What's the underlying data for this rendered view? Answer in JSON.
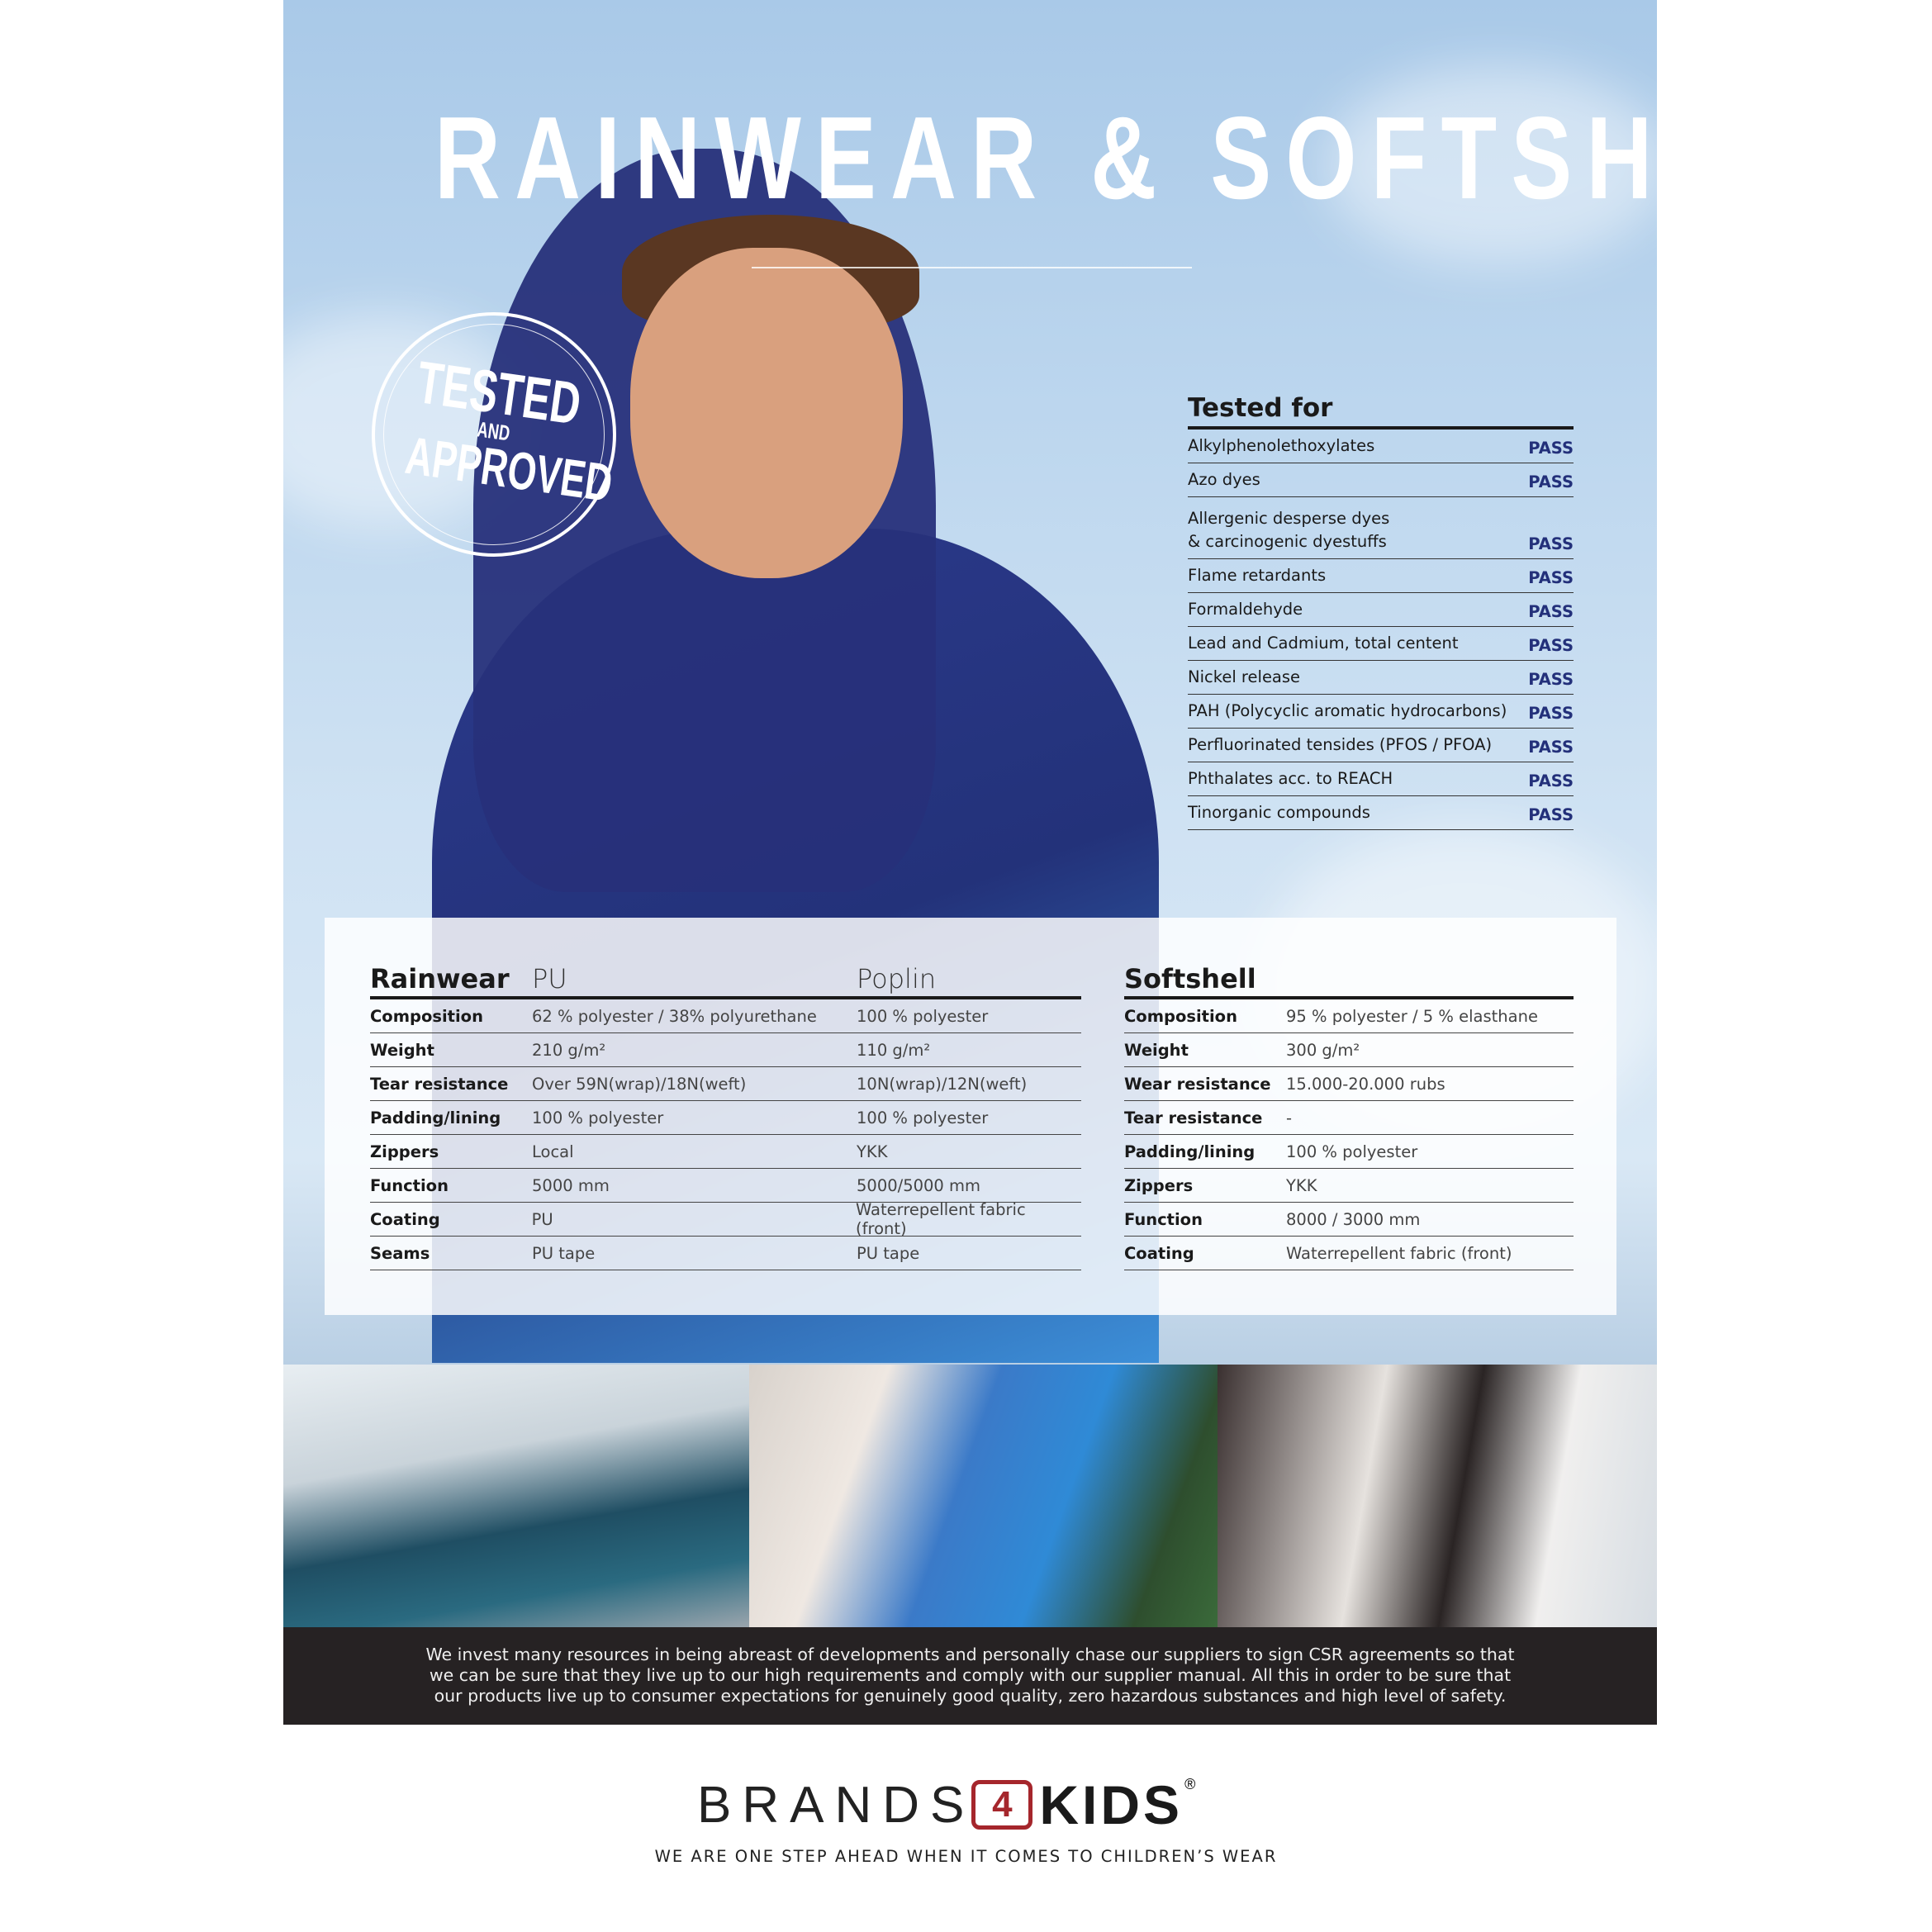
{
  "title": "RAINWEAR & SOFTSHELL",
  "stamp": {
    "line1": "TESTED",
    "line2": "AND",
    "line3": "APPROVED"
  },
  "tested_for": {
    "heading": "Tested for",
    "items": [
      {
        "label": "Alkylphenolethoxylates",
        "result": "PASS"
      },
      {
        "label": "Azo dyes",
        "result": "PASS"
      },
      {
        "label": "Allergenic desperse dyes\n& carcinogenic dyestuffs",
        "result": "PASS"
      },
      {
        "label": "Flame retardants",
        "result": "PASS"
      },
      {
        "label": "Formaldehyde",
        "result": "PASS"
      },
      {
        "label": "Lead and Cadmium, total centent",
        "result": "PASS"
      },
      {
        "label": "Nickel release",
        "result": "PASS"
      },
      {
        "label": "PAH (Polycyclic aromatic hydrocarbons)",
        "result": "PASS"
      },
      {
        "label": "Perfluorinated tensides (PFOS / PFOA)",
        "result": "PASS"
      },
      {
        "label": "Phthalates acc. to REACH",
        "result": "PASS"
      },
      {
        "label": "Tinorganic compounds",
        "result": "PASS"
      }
    ],
    "pass_color": "#23307a"
  },
  "rainwear": {
    "heading": "Rainwear",
    "columns": [
      "PU",
      "Poplin"
    ],
    "rows": [
      {
        "label": "Composition",
        "values": [
          "62 % polyester / 38% polyurethane",
          "100 % polyester"
        ]
      },
      {
        "label": "Weight",
        "values": [
          "210 g/m²",
          "110 g/m²"
        ]
      },
      {
        "label": "Tear resistance",
        "values": [
          "Over 59N(wrap)/18N(weft)",
          "10N(wrap)/12N(weft)"
        ]
      },
      {
        "label": "Padding/lining",
        "values": [
          "100 % polyester",
          "100 % polyester"
        ]
      },
      {
        "label": "Zippers",
        "values": [
          "Local",
          "YKK"
        ]
      },
      {
        "label": "Function",
        "values": [
          "5000 mm",
          "5000/5000 mm"
        ]
      },
      {
        "label": "Coating",
        "values": [
          "PU",
          "Waterrepellent fabric (front)"
        ]
      },
      {
        "label": "Seams",
        "values": [
          "PU tape",
          "PU tape"
        ]
      }
    ]
  },
  "softshell": {
    "heading": "Softshell",
    "rows": [
      {
        "label": "Composition",
        "value": "95 % polyester / 5 % elasthane"
      },
      {
        "label": "Weight",
        "value": "300 g/m²"
      },
      {
        "label": "Wear resistance",
        "value": "15.000-20.000 rubs"
      },
      {
        "label": "Tear resistance",
        "value": "-"
      },
      {
        "label": "Padding/lining",
        "value": "100 % polyester"
      },
      {
        "label": "Zippers",
        "value": "YKK"
      },
      {
        "label": "Function",
        "value": "8000 / 3000 mm"
      },
      {
        "label": "Coating",
        "value": "Waterrepellent fabric (front)"
      }
    ]
  },
  "statement": "We invest many resources in being abreast of developments and personally chase our suppliers to sign CSR agreements so that we can be sure that they live up to our high requirements and comply with our supplier manual. All this in order to be sure that our products live up to consumer expectations for genuinely good quality, zero hazardous substances and high level of safety.",
  "logo": {
    "brands": "BRANDS",
    "four": "4",
    "kids": "KIDS",
    "reg": "®",
    "accent": "#a5262c"
  },
  "tagline": "WE ARE ONE STEP AHEAD WHEN IT COMES TO CHILDREN’S WEAR"
}
